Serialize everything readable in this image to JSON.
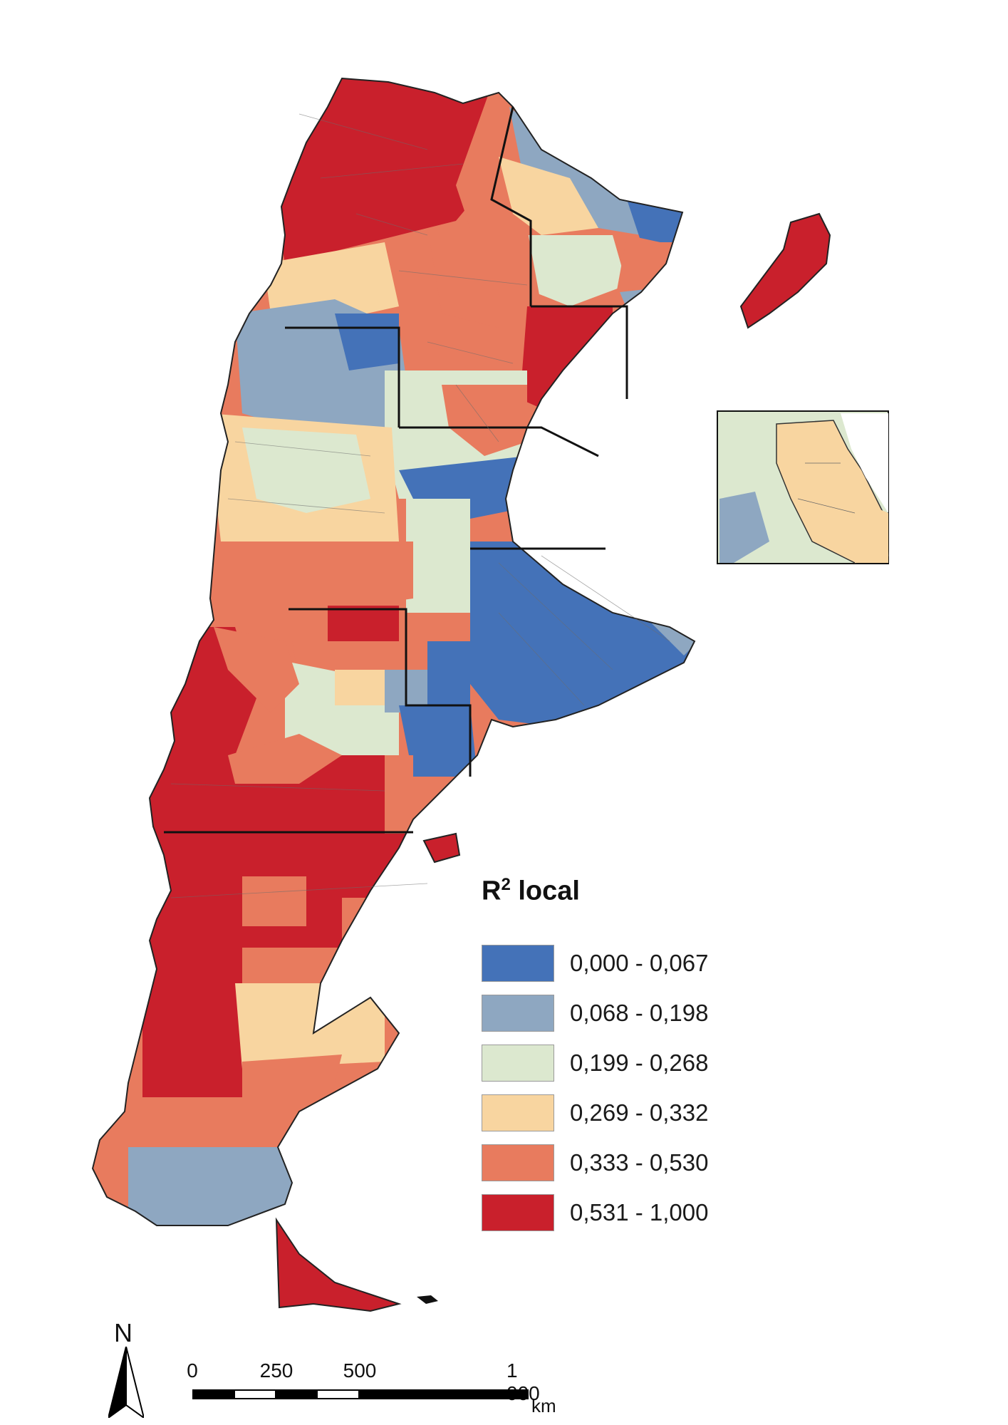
{
  "legend": {
    "title_main": "R",
    "title_sup": "2",
    "title_rest": " local",
    "classes": [
      {
        "label": "0,000 - 0,067",
        "color": "#4472b8"
      },
      {
        "label": "0,068 - 0,198",
        "color": "#8ea7c1"
      },
      {
        "label": "0,199 - 0,268",
        "color": "#dce8cf"
      },
      {
        "label": "0,269 - 0,332",
        "color": "#f8d5a0"
      },
      {
        "label": "0,333 - 0,530",
        "color": "#e87b5e"
      },
      {
        "label": "0,531 - 1,000",
        "color": "#c9202c"
      }
    ]
  },
  "north_arrow": {
    "letter": "N",
    "icon": "north-arrow-icon"
  },
  "scale_bar": {
    "ticks": [
      "0",
      "250",
      "500",
      "1 000"
    ],
    "unit": "km"
  }
}
